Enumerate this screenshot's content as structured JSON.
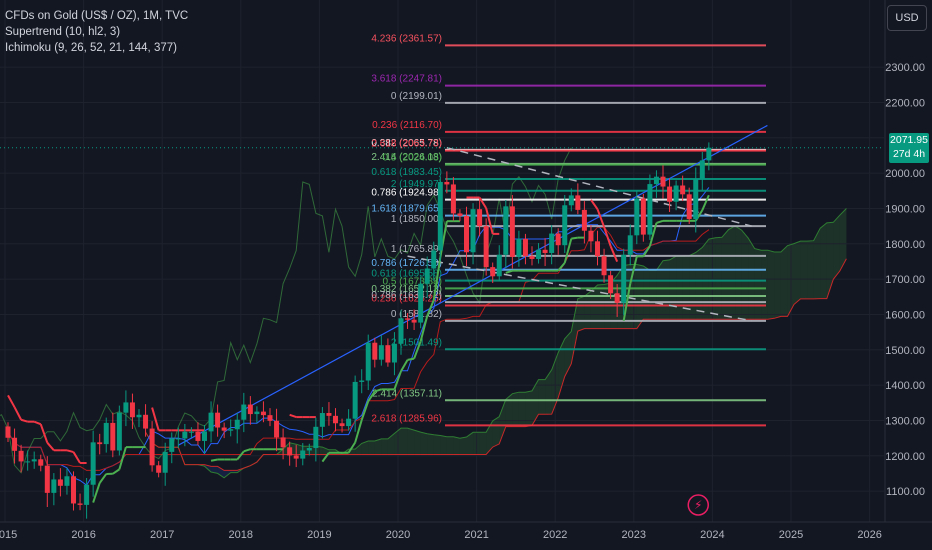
{
  "legend": {
    "title": "CFDs on Gold (US$ / OZ), 1M, TVC",
    "supertrend": "Supertrend (10, hl2, 3)",
    "ichimoku": "Ichimoku (9, 26, 52, 21, 144, 377)"
  },
  "currency_button": "USD",
  "last_price": {
    "value": "2071.95",
    "countdown": "27d 4h"
  },
  "colors": {
    "background": "#131722",
    "up": "#089981",
    "down": "#f23645",
    "price_line": "#089981"
  },
  "chart_data": {
    "type": "candlestick",
    "symbol": "XAUUSD",
    "interval": "1M",
    "y_ticks": [
      1100,
      1200,
      1300,
      1400,
      1500,
      1600,
      1700,
      1800,
      1900,
      2000,
      2100,
      2200,
      2300
    ],
    "y_tick_labels": [
      "1100.00",
      "1200.00",
      "1300.00",
      "1400.00",
      "1500.00",
      "1600.00",
      "1700.00",
      "1800.00",
      "1900.00",
      "2000.00",
      "2100.00",
      "2200.00",
      "2300.00"
    ],
    "ylim": [
      1055,
      2425
    ],
    "x_ticks": [
      "2015",
      "2016",
      "2017",
      "2018",
      "2019",
      "2020",
      "2021",
      "2022",
      "2023",
      "2024",
      "2025",
      "2026"
    ],
    "xlim": [
      2015.0,
      2026.95
    ],
    "closes": [
      1251,
      1214,
      1184,
      1184,
      1190,
      1172,
      1095,
      1133,
      1115,
      1142,
      1065,
      1061,
      1118,
      1238,
      1233,
      1293,
      1215,
      1322,
      1351,
      1309,
      1316,
      1277,
      1173,
      1152,
      1211,
      1249,
      1249,
      1268,
      1268,
      1242,
      1269,
      1322,
      1280,
      1271,
      1275,
      1302,
      1345,
      1318,
      1325,
      1315,
      1299,
      1252,
      1224,
      1201,
      1192,
      1215,
      1222,
      1282,
      1321,
      1313,
      1292,
      1284,
      1305,
      1409,
      1413,
      1520,
      1472,
      1513,
      1464,
      1517,
      1589,
      1585,
      1577,
      1687,
      1730,
      1781,
      1975,
      1968,
      1886,
      1879,
      1776,
      1898,
      1850,
      1734,
      1708,
      1769,
      1906,
      1763,
      1814,
      1765,
      1757,
      1783,
      1774,
      1829,
      1796,
      1909,
      1937,
      1896,
      1837,
      1807,
      1765,
      1711,
      1660,
      1633,
      1769,
      1824,
      1928,
      1826,
      1969,
      1990,
      1962,
      1919,
      1965,
      1940,
      1870,
      1983,
      2036,
      2072
    ],
    "fib_levels": [
      {
        "label": "4.236 (2361.57)",
        "price": 2361.57,
        "color": "#f7525f"
      },
      {
        "label": "3.618 (2247.81)",
        "price": 2247.81,
        "color": "#9c27b0"
      },
      {
        "label": "0 (2199.01)",
        "price": 2199.01,
        "color": "#b2b5be"
      },
      {
        "label": "0.236 (2116.70)",
        "price": 2116.7,
        "color": "#f23645"
      },
      {
        "label": "0.382 (2065.78)",
        "price": 2065.78,
        "color": "#ffffff"
      },
      {
        "label": "2.618 (2063.73)",
        "price": 2063.73,
        "color": "#f23645"
      },
      {
        "label": "2.414 (2026.18)",
        "price": 2026.18,
        "color": "#81c784"
      },
      {
        "label": "0.5 (2024.03)",
        "price": 2024.03,
        "color": "#4caf50"
      },
      {
        "label": "0.618 (1983.45)",
        "price": 1983.45,
        "color": "#089981"
      },
      {
        "label": "2 (1949.97)",
        "price": 1949.97,
        "color": "#089981"
      },
      {
        "label": "0.786 (1924.98)",
        "price": 1924.98,
        "color": "#ffffff"
      },
      {
        "label": "1.618 (1879.65)",
        "price": 1879.65,
        "color": "#64b5f6"
      },
      {
        "label": "1 (1850.00)",
        "price": 1850.0,
        "color": "#b2b5be"
      },
      {
        "label": "1 (1765.89)",
        "price": 1765.89,
        "color": "#b2b5be"
      },
      {
        "label": "0.786 (1726.50)",
        "price": 1726.5,
        "color": "#64b5f6"
      },
      {
        "label": "0.618 (1695.58)",
        "price": 1695.58,
        "color": "#089981"
      },
      {
        "label": "0.5 (1673.88)",
        "price": 1673.88,
        "color": "#4caf50"
      },
      {
        "label": "0.382 (1652.13)",
        "price": 1652.13,
        "color": "#81c784"
      },
      {
        "label": "0.236 (1625.26)",
        "price": 1625.26,
        "color": "#f23645"
      },
      {
        "label": "0.786 (1634.72)",
        "price": 1634.72,
        "color": "#b2b5be"
      },
      {
        "label": "0 (1581.82)",
        "price": 1581.82,
        "color": "#b2b5be"
      },
      {
        "label": "2 (1501.49)",
        "price": 1501.49,
        "color": "#089981"
      },
      {
        "label": "2.414 (1357.11)",
        "price": 1357.11,
        "color": "#81c784"
      },
      {
        "label": "2.618 (1285.96)",
        "price": 1285.96,
        "color": "#f23645"
      }
    ]
  }
}
